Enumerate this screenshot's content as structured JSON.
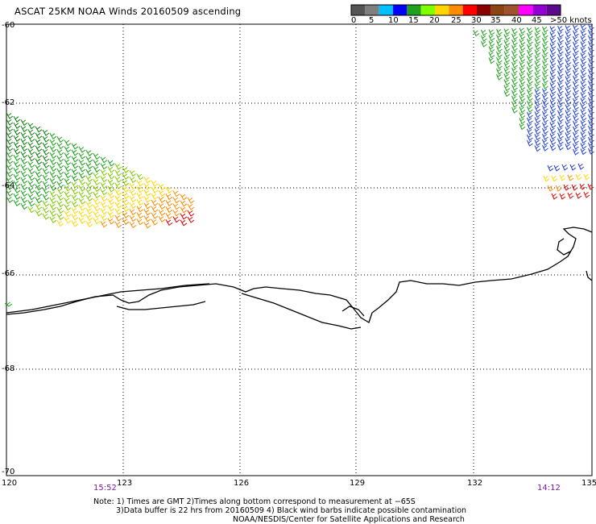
{
  "title": "ASCAT 25KM NOAA Winds 20160509 ascending",
  "legend": {
    "colors": [
      "#555555",
      "#7f7f7f",
      "#00bfff",
      "#0000ff",
      "#1fa01f",
      "#7fff00",
      "#ffd700",
      "#ff8c00",
      "#ff0000",
      "#8b0000",
      "#8b4513",
      "#a0522d",
      "#ff00ff",
      "#9400d3",
      "#5a0a8a"
    ],
    "labels": [
      "0",
      "5",
      "10",
      "15",
      "20",
      "25",
      "30",
      "35",
      "40",
      "45",
      ">50 knots"
    ]
  },
  "axes": {
    "lat_labels": [
      "-60",
      "-62",
      "-64",
      "-66",
      "-68",
      "-70"
    ],
    "lon_labels": [
      "120",
      "123",
      "126",
      "129",
      "132",
      "135"
    ]
  },
  "times": [
    "15:52",
    "14:12"
  ],
  "notes": [
    "Note: 1) Times are GMT 2)Times along bottom correspond to measurement at −65S",
    "3)Data buffer is 22 hrs from 20160509 4) Black wind barbs indicate possible contamination",
    "NOAA/NESDIS/Center for Satellite Applications and Research"
  ]
}
